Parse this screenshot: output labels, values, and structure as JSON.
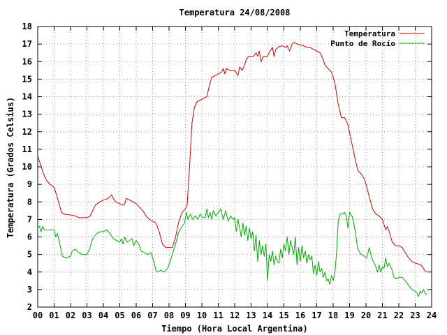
{
  "chart_data": {
    "type": "line",
    "title": "Temperatura 24/08/2008",
    "xlabel": "Tiempo (Hora Local Argentina)",
    "ylabel": "Temperatura (Grados Celsius)",
    "xlim": [
      0,
      24
    ],
    "ylim": [
      2,
      18
    ],
    "x_ticks": [
      "00",
      "01",
      "02",
      "03",
      "04",
      "05",
      "06",
      "07",
      "08",
      "09",
      "10",
      "11",
      "12",
      "13",
      "14",
      "15",
      "16",
      "17",
      "18",
      "19",
      "20",
      "21",
      "22",
      "23",
      "24"
    ],
    "y_ticks": [
      "2",
      "3",
      "4",
      "5",
      "6",
      "7",
      "8",
      "9",
      "10",
      "11",
      "12",
      "13",
      "14",
      "15",
      "16",
      "17",
      "18"
    ],
    "grid": true,
    "legend_position": "top-right",
    "series": [
      {
        "name": "Temperatura",
        "color": "#cc0000",
        "points": [
          [
            0.0,
            10.6
          ],
          [
            0.15,
            10.2
          ],
          [
            0.25,
            9.9
          ],
          [
            0.35,
            9.6
          ],
          [
            0.45,
            9.4
          ],
          [
            0.55,
            9.2
          ],
          [
            0.65,
            9.1
          ],
          [
            0.75,
            9.0
          ],
          [
            0.9,
            8.9
          ],
          [
            1.0,
            8.8
          ],
          [
            1.15,
            8.4
          ],
          [
            1.3,
            7.9
          ],
          [
            1.45,
            7.4
          ],
          [
            1.6,
            7.3
          ],
          [
            2.0,
            7.25
          ],
          [
            2.3,
            7.2
          ],
          [
            2.5,
            7.1
          ],
          [
            3.0,
            7.1
          ],
          [
            3.2,
            7.2
          ],
          [
            3.35,
            7.5
          ],
          [
            3.5,
            7.8
          ],
          [
            3.7,
            7.95
          ],
          [
            4.0,
            8.1
          ],
          [
            4.3,
            8.2
          ],
          [
            4.5,
            8.4
          ],
          [
            4.6,
            8.2
          ],
          [
            4.75,
            8.0
          ],
          [
            5.0,
            7.9
          ],
          [
            5.2,
            7.8
          ],
          [
            5.3,
            7.9
          ],
          [
            5.4,
            8.2
          ],
          [
            5.6,
            8.1
          ],
          [
            5.8,
            8.0
          ],
          [
            6.0,
            7.9
          ],
          [
            6.2,
            7.7
          ],
          [
            6.4,
            7.5
          ],
          [
            6.6,
            7.2
          ],
          [
            6.8,
            7.0
          ],
          [
            7.0,
            6.9
          ],
          [
            7.2,
            6.8
          ],
          [
            7.4,
            6.3
          ],
          [
            7.6,
            5.6
          ],
          [
            7.8,
            5.4
          ],
          [
            8.0,
            5.4
          ],
          [
            8.2,
            5.4
          ],
          [
            8.4,
            6.0
          ],
          [
            8.6,
            6.9
          ],
          [
            8.8,
            7.4
          ],
          [
            9.0,
            7.6
          ],
          [
            9.1,
            7.8
          ],
          [
            9.25,
            10.0
          ],
          [
            9.4,
            12.5
          ],
          [
            9.55,
            13.4
          ],
          [
            9.7,
            13.7
          ],
          [
            9.9,
            13.8
          ],
          [
            10.1,
            13.9
          ],
          [
            10.3,
            14.0
          ],
          [
            10.45,
            14.6
          ],
          [
            10.6,
            15.1
          ],
          [
            10.8,
            15.2
          ],
          [
            11.0,
            15.3
          ],
          [
            11.2,
            15.4
          ],
          [
            11.3,
            15.6
          ],
          [
            11.4,
            15.3
          ],
          [
            11.5,
            15.6
          ],
          [
            11.7,
            15.5
          ],
          [
            11.9,
            15.5
          ],
          [
            12.0,
            15.5
          ],
          [
            12.2,
            15.2
          ],
          [
            12.3,
            15.7
          ],
          [
            12.45,
            15.5
          ],
          [
            12.6,
            15.8
          ],
          [
            12.7,
            16.1
          ],
          [
            12.85,
            16.3
          ],
          [
            13.0,
            16.3
          ],
          [
            13.15,
            16.3
          ],
          [
            13.3,
            16.5
          ],
          [
            13.4,
            16.3
          ],
          [
            13.5,
            16.6
          ],
          [
            13.6,
            16.0
          ],
          [
            13.75,
            16.3
          ],
          [
            14.0,
            16.3
          ],
          [
            14.15,
            16.6
          ],
          [
            14.3,
            16.8
          ],
          [
            14.4,
            16.3
          ],
          [
            14.5,
            16.7
          ],
          [
            14.7,
            16.85
          ],
          [
            14.9,
            16.9
          ],
          [
            15.1,
            16.8
          ],
          [
            15.2,
            16.9
          ],
          [
            15.35,
            16.6
          ],
          [
            15.5,
            17.0
          ],
          [
            15.65,
            17.1
          ],
          [
            15.8,
            17.0
          ],
          [
            16.0,
            16.95
          ],
          [
            16.2,
            16.9
          ],
          [
            16.4,
            16.8
          ],
          [
            16.6,
            16.8
          ],
          [
            16.8,
            16.7
          ],
          [
            17.0,
            16.6
          ],
          [
            17.2,
            16.5
          ],
          [
            17.35,
            16.2
          ],
          [
            17.5,
            15.8
          ],
          [
            17.7,
            15.6
          ],
          [
            17.9,
            15.4
          ],
          [
            18.1,
            14.8
          ],
          [
            18.3,
            13.6
          ],
          [
            18.5,
            12.8
          ],
          [
            18.7,
            12.8
          ],
          [
            18.9,
            12.4
          ],
          [
            19.1,
            11.5
          ],
          [
            19.3,
            10.6
          ],
          [
            19.5,
            9.8
          ],
          [
            19.7,
            9.6
          ],
          [
            19.9,
            9.3
          ],
          [
            20.0,
            9.0
          ],
          [
            20.2,
            8.3
          ],
          [
            20.4,
            7.6
          ],
          [
            20.6,
            7.3
          ],
          [
            20.8,
            7.2
          ],
          [
            21.0,
            7.0
          ],
          [
            21.1,
            6.7
          ],
          [
            21.2,
            6.4
          ],
          [
            21.3,
            6.6
          ],
          [
            21.45,
            6.2
          ],
          [
            21.6,
            5.7
          ],
          [
            21.8,
            5.5
          ],
          [
            22.0,
            5.5
          ],
          [
            22.2,
            5.4
          ],
          [
            22.4,
            5.1
          ],
          [
            22.6,
            4.8
          ],
          [
            22.8,
            4.6
          ],
          [
            23.0,
            4.5
          ],
          [
            23.2,
            4.45
          ],
          [
            23.35,
            4.4
          ],
          [
            23.5,
            4.2
          ],
          [
            23.6,
            4.05
          ],
          [
            23.7,
            4.0
          ]
        ]
      },
      {
        "name": "Punto de Rocío",
        "color": "#00aa00",
        "points": [
          [
            0.0,
            6.6
          ],
          [
            0.1,
            6.6
          ],
          [
            0.2,
            6.3
          ],
          [
            0.3,
            6.6
          ],
          [
            0.4,
            6.4
          ],
          [
            0.6,
            6.4
          ],
          [
            0.8,
            6.4
          ],
          [
            1.0,
            6.4
          ],
          [
            1.1,
            6.0
          ],
          [
            1.2,
            6.2
          ],
          [
            1.35,
            5.6
          ],
          [
            1.5,
            4.9
          ],
          [
            1.7,
            4.8
          ],
          [
            2.0,
            4.9
          ],
          [
            2.1,
            5.2
          ],
          [
            2.3,
            5.3
          ],
          [
            2.5,
            5.1
          ],
          [
            2.7,
            5.0
          ],
          [
            3.0,
            5.0
          ],
          [
            3.15,
            5.3
          ],
          [
            3.35,
            5.9
          ],
          [
            3.6,
            6.2
          ],
          [
            3.8,
            6.3
          ],
          [
            4.0,
            6.3
          ],
          [
            4.2,
            6.4
          ],
          [
            4.4,
            6.2
          ],
          [
            4.6,
            5.9
          ],
          [
            4.8,
            5.8
          ],
          [
            5.0,
            5.7
          ],
          [
            5.1,
            5.9
          ],
          [
            5.2,
            5.6
          ],
          [
            5.3,
            6.0
          ],
          [
            5.45,
            5.7
          ],
          [
            5.6,
            5.8
          ],
          [
            5.75,
            5.9
          ],
          [
            5.85,
            5.5
          ],
          [
            6.0,
            5.8
          ],
          [
            6.15,
            5.6
          ],
          [
            6.3,
            5.2
          ],
          [
            6.5,
            5.1
          ],
          [
            6.7,
            5.0
          ],
          [
            6.9,
            5.1
          ],
          [
            7.1,
            4.5
          ],
          [
            7.2,
            4.1
          ],
          [
            7.3,
            4.0
          ],
          [
            7.5,
            4.1
          ],
          [
            7.7,
            4.0
          ],
          [
            7.9,
            4.2
          ],
          [
            8.0,
            4.4
          ],
          [
            8.2,
            5.0
          ],
          [
            8.4,
            5.6
          ],
          [
            8.6,
            6.3
          ],
          [
            8.8,
            6.6
          ],
          [
            8.95,
            6.8
          ],
          [
            9.05,
            7.4
          ],
          [
            9.15,
            7.0
          ],
          [
            9.3,
            7.3
          ],
          [
            9.45,
            7.0
          ],
          [
            9.6,
            7.2
          ],
          [
            9.75,
            7.0
          ],
          [
            9.9,
            7.3
          ],
          [
            10.05,
            7.1
          ],
          [
            10.2,
            7.1
          ],
          [
            10.3,
            7.6
          ],
          [
            10.4,
            7.1
          ],
          [
            10.5,
            7.4
          ],
          [
            10.6,
            7.0
          ],
          [
            10.7,
            7.5
          ],
          [
            10.85,
            7.2
          ],
          [
            11.0,
            7.4
          ],
          [
            11.15,
            7.6
          ],
          [
            11.3,
            7.0
          ],
          [
            11.45,
            7.5
          ],
          [
            11.6,
            6.9
          ],
          [
            11.75,
            7.2
          ],
          [
            11.9,
            7.0
          ],
          [
            12.0,
            7.1
          ],
          [
            12.1,
            6.3
          ],
          [
            12.2,
            7.0
          ],
          [
            12.3,
            6.5
          ],
          [
            12.4,
            6.0
          ],
          [
            12.5,
            6.8
          ],
          [
            12.6,
            6.1
          ],
          [
            12.7,
            6.6
          ],
          [
            12.8,
            5.8
          ],
          [
            12.9,
            6.5
          ],
          [
            13.0,
            5.9
          ],
          [
            13.1,
            6.3
          ],
          [
            13.2,
            5.2
          ],
          [
            13.3,
            6.1
          ],
          [
            13.4,
            4.6
          ],
          [
            13.5,
            5.8
          ],
          [
            13.6,
            5.0
          ],
          [
            13.7,
            5.5
          ],
          [
            13.8,
            4.9
          ],
          [
            13.9,
            5.6
          ],
          [
            14.0,
            3.5
          ],
          [
            14.1,
            5.0
          ],
          [
            14.2,
            4.6
          ],
          [
            14.3,
            5.2
          ],
          [
            14.4,
            4.4
          ],
          [
            14.5,
            4.9
          ],
          [
            14.6,
            4.6
          ],
          [
            14.7,
            4.5
          ],
          [
            14.8,
            5.3
          ],
          [
            14.9,
            4.8
          ],
          [
            15.0,
            5.6
          ],
          [
            15.1,
            5.2
          ],
          [
            15.2,
            6.0
          ],
          [
            15.3,
            5.0
          ],
          [
            15.4,
            5.8
          ],
          [
            15.5,
            5.4
          ],
          [
            15.6,
            5.0
          ],
          [
            15.7,
            6.0
          ],
          [
            15.8,
            4.4
          ],
          [
            15.9,
            5.4
          ],
          [
            16.0,
            4.6
          ],
          [
            16.1,
            5.5
          ],
          [
            16.2,
            4.8
          ],
          [
            16.3,
            5.2
          ],
          [
            16.4,
            4.5
          ],
          [
            16.5,
            5.0
          ],
          [
            16.6,
            4.7
          ],
          [
            16.7,
            4.9
          ],
          [
            16.8,
            3.9
          ],
          [
            16.9,
            4.4
          ],
          [
            17.0,
            3.8
          ],
          [
            17.1,
            4.6
          ],
          [
            17.2,
            4.0
          ],
          [
            17.3,
            4.2
          ],
          [
            17.4,
            3.7
          ],
          [
            17.5,
            4.0
          ],
          [
            17.6,
            3.5
          ],
          [
            17.7,
            3.6
          ],
          [
            17.8,
            3.3
          ],
          [
            17.9,
            3.8
          ],
          [
            18.0,
            3.5
          ],
          [
            18.1,
            3.9
          ],
          [
            18.2,
            5.0
          ],
          [
            18.3,
            6.8
          ],
          [
            18.4,
            7.3
          ],
          [
            18.55,
            7.3
          ],
          [
            18.7,
            7.4
          ],
          [
            18.8,
            7.2
          ],
          [
            18.9,
            6.5
          ],
          [
            19.0,
            7.4
          ],
          [
            19.15,
            7.2
          ],
          [
            19.25,
            6.8
          ],
          [
            19.35,
            6.3
          ],
          [
            19.5,
            5.3
          ],
          [
            19.7,
            5.0
          ],
          [
            19.9,
            4.9
          ],
          [
            20.05,
            4.8
          ],
          [
            20.2,
            5.4
          ],
          [
            20.35,
            4.8
          ],
          [
            20.5,
            4.5
          ],
          [
            20.6,
            4.3
          ],
          [
            20.7,
            4.0
          ],
          [
            20.8,
            4.4
          ],
          [
            20.9,
            4.0
          ],
          [
            21.0,
            4.3
          ],
          [
            21.1,
            4.2
          ],
          [
            21.2,
            4.8
          ],
          [
            21.3,
            4.3
          ],
          [
            21.4,
            4.5
          ],
          [
            21.6,
            4.1
          ],
          [
            21.7,
            3.7
          ],
          [
            21.85,
            3.6
          ],
          [
            22.0,
            3.7
          ],
          [
            22.2,
            3.7
          ],
          [
            22.4,
            3.5
          ],
          [
            22.55,
            3.3
          ],
          [
            22.7,
            3.1
          ],
          [
            22.9,
            2.95
          ],
          [
            23.0,
            2.9
          ],
          [
            23.1,
            2.8
          ],
          [
            23.2,
            2.6
          ],
          [
            23.3,
            2.9
          ],
          [
            23.4,
            2.8
          ],
          [
            23.5,
            3.0
          ],
          [
            23.6,
            2.8
          ],
          [
            23.7,
            2.7
          ]
        ]
      }
    ]
  }
}
